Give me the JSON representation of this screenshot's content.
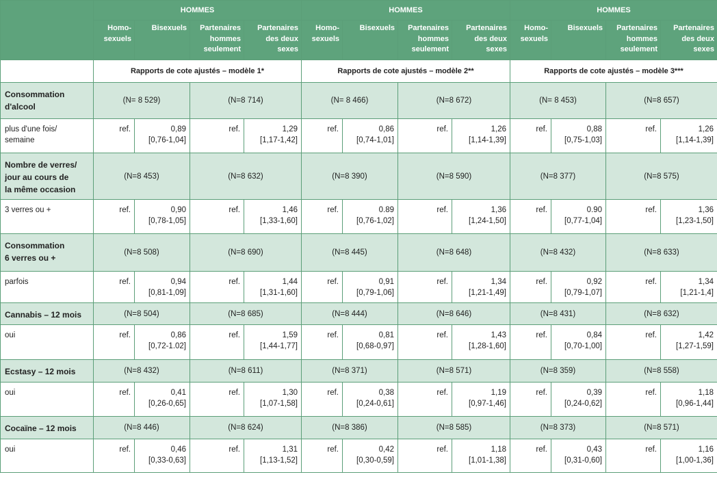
{
  "header": {
    "group_label": "HOMMES",
    "subcolumns": [
      "Homo-\nsexuels",
      "Bisexuels",
      "Partenaires\nhommes\nseulement",
      "Partenaires\ndes deux\nsexes"
    ]
  },
  "models": [
    "Rapports de cote ajustés – modèle 1*",
    "Rapports de cote ajustés – modèle 2**",
    "Rapports de cote ajustés – modèle 3***"
  ],
  "rows": [
    {
      "category": "Consommation\nd'alcool",
      "n": [
        "(N= 8 529)",
        "(N=8 714)",
        "(N= 8 466)",
        "(N=8 672)",
        "(N= 8 453)",
        "(N=8 657)"
      ],
      "item": "plus d'une fois/\nsemaine",
      "values": [
        [
          "ref.",
          "0,89",
          "[0,76-1,04]",
          "ref.",
          "1,29",
          "[1,17-1,42]"
        ],
        [
          "ref.",
          "0,86",
          "[0,74-1,01]",
          "ref.",
          "1,26",
          "[1,14-1,39]"
        ],
        [
          "ref.",
          "0,88",
          "[0,75-1,03]",
          "ref.",
          "1,26",
          "[1,14-1,39]"
        ]
      ]
    },
    {
      "category": "Nombre de verres/\njour au cours de\nla même occasion",
      "n": [
        "(N=8 453)",
        "(N=8 632)",
        "(N=8 390)",
        "(N=8 590)",
        "(N=8 377)",
        "(N=8 575)"
      ],
      "item": "3 verres ou +",
      "values": [
        [
          "ref.",
          "0,90",
          "[0,78-1,05]",
          "ref.",
          "1,46",
          "[1,33-1,60]"
        ],
        [
          "ref.",
          "0.89",
          "[0,76-1,02]",
          "ref.",
          "1,36",
          "[1,24-1,50]"
        ],
        [
          "ref.",
          "0.90",
          "[0,77-1,04]",
          "ref.",
          "1,36",
          "[1,23-1,50]"
        ]
      ]
    },
    {
      "category": "Consommation\n6 verres ou +",
      "n": [
        "(N=8 508)",
        "(N=8 690)",
        "(N=8 445)",
        "(N=8 648)",
        "(N=8 432)",
        "(N=8 633)"
      ],
      "item": "parfois",
      "values": [
        [
          "ref.",
          "0,94",
          "[0,81-1,09]",
          "ref.",
          "1,44",
          "[1,31-1,60]"
        ],
        [
          "ref.",
          "0,91",
          "[0,79-1,06]",
          "ref.",
          "1,34",
          "[1,21-1,49]"
        ],
        [
          "ref.",
          "0,92",
          "[0,79-1,07]",
          "ref.",
          "1,34",
          "[1,21-1,4]"
        ]
      ]
    },
    {
      "category": "Cannabis – 12 mois",
      "n": [
        "(N=8 504)",
        "(N=8 685)",
        "(N=8 444)",
        "(N=8 646)",
        "(N=8 431)",
        "(N=8 632)"
      ],
      "item": "oui",
      "values": [
        [
          "ref.",
          "0,86",
          "[0,72-1.02]",
          "ref.",
          "1,59",
          "[1,44-1,77]"
        ],
        [
          "ref.",
          "0,81",
          "[0,68-0,97]",
          "ref.",
          "1,43",
          "[1,28-1,60]"
        ],
        [
          "ref.",
          "0,84",
          "[0,70-1,00]",
          "ref.",
          "1,42",
          "[1,27-1,59]"
        ]
      ]
    },
    {
      "category": "Ecstasy – 12 mois",
      "n": [
        "(N=8 432)",
        "(N=8 611)",
        "(N=8 371)",
        "(N=8 571)",
        "(N=8 359)",
        "(N=8 558)"
      ],
      "item": "oui",
      "values": [
        [
          "ref.",
          "0,41",
          "[0,26-0,65]",
          "ref.",
          "1,30",
          "[1,07-1,58]"
        ],
        [
          "ref.",
          "0,38",
          "[0,24-0,61]",
          "ref.",
          "1,19",
          "[0,97-1,46]"
        ],
        [
          "ref.",
          "0,39",
          "[0,24-0,62]",
          "ref.",
          "1,18",
          "[0,96-1,44]"
        ]
      ]
    },
    {
      "category": "Cocaïne – 12 mois",
      "n": [
        "(N=8 446)",
        "(N=8 624)",
        "(N=8 386)",
        "(N=8 585)",
        "(N=8 373)",
        "(N=8 571)"
      ],
      "item": "oui",
      "values": [
        [
          "ref.",
          "0,46",
          "[0,33-0,63]",
          "ref.",
          "1,31",
          "[1,13-1,52]"
        ],
        [
          "ref.",
          "0,42",
          "[0,30-0,59]",
          "ref.",
          "1,18",
          "[1,01-1,38]"
        ],
        [
          "ref.",
          "0,43",
          "[0,31-0,60]",
          "ref.",
          "1,16",
          "[1,00-1,36]"
        ]
      ]
    }
  ]
}
